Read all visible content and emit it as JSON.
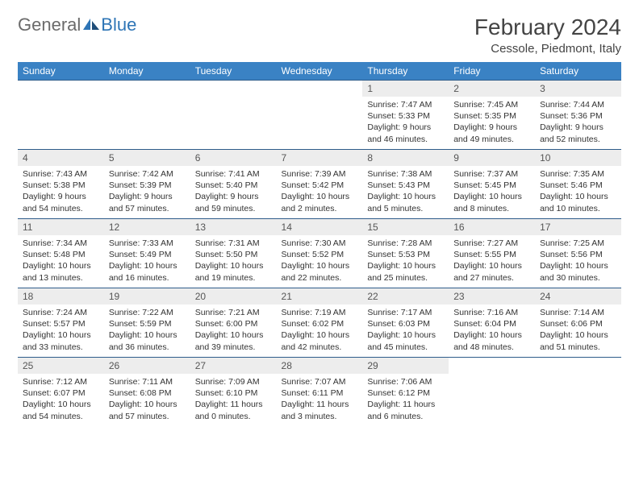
{
  "logo": {
    "text1": "General",
    "text2": "Blue"
  },
  "title": "February 2024",
  "location": "Cessole, Piedmont, Italy",
  "colors": {
    "header_bg": "#3a82c4",
    "header_text": "#ffffff",
    "row_border": "#2e5c8a",
    "daynum_bg": "#ededed",
    "logo_gray": "#6b6b6b",
    "logo_blue": "#2e75b6"
  },
  "day_headers": [
    "Sunday",
    "Monday",
    "Tuesday",
    "Wednesday",
    "Thursday",
    "Friday",
    "Saturday"
  ],
  "weeks": [
    [
      null,
      null,
      null,
      null,
      {
        "n": "1",
        "sr": "7:47 AM",
        "ss": "5:33 PM",
        "dl": "9 hours and 46 minutes."
      },
      {
        "n": "2",
        "sr": "7:45 AM",
        "ss": "5:35 PM",
        "dl": "9 hours and 49 minutes."
      },
      {
        "n": "3",
        "sr": "7:44 AM",
        "ss": "5:36 PM",
        "dl": "9 hours and 52 minutes."
      }
    ],
    [
      {
        "n": "4",
        "sr": "7:43 AM",
        "ss": "5:38 PM",
        "dl": "9 hours and 54 minutes."
      },
      {
        "n": "5",
        "sr": "7:42 AM",
        "ss": "5:39 PM",
        "dl": "9 hours and 57 minutes."
      },
      {
        "n": "6",
        "sr": "7:41 AM",
        "ss": "5:40 PM",
        "dl": "9 hours and 59 minutes."
      },
      {
        "n": "7",
        "sr": "7:39 AM",
        "ss": "5:42 PM",
        "dl": "10 hours and 2 minutes."
      },
      {
        "n": "8",
        "sr": "7:38 AM",
        "ss": "5:43 PM",
        "dl": "10 hours and 5 minutes."
      },
      {
        "n": "9",
        "sr": "7:37 AM",
        "ss": "5:45 PM",
        "dl": "10 hours and 8 minutes."
      },
      {
        "n": "10",
        "sr": "7:35 AM",
        "ss": "5:46 PM",
        "dl": "10 hours and 10 minutes."
      }
    ],
    [
      {
        "n": "11",
        "sr": "7:34 AM",
        "ss": "5:48 PM",
        "dl": "10 hours and 13 minutes."
      },
      {
        "n": "12",
        "sr": "7:33 AM",
        "ss": "5:49 PM",
        "dl": "10 hours and 16 minutes."
      },
      {
        "n": "13",
        "sr": "7:31 AM",
        "ss": "5:50 PM",
        "dl": "10 hours and 19 minutes."
      },
      {
        "n": "14",
        "sr": "7:30 AM",
        "ss": "5:52 PM",
        "dl": "10 hours and 22 minutes."
      },
      {
        "n": "15",
        "sr": "7:28 AM",
        "ss": "5:53 PM",
        "dl": "10 hours and 25 minutes."
      },
      {
        "n": "16",
        "sr": "7:27 AM",
        "ss": "5:55 PM",
        "dl": "10 hours and 27 minutes."
      },
      {
        "n": "17",
        "sr": "7:25 AM",
        "ss": "5:56 PM",
        "dl": "10 hours and 30 minutes."
      }
    ],
    [
      {
        "n": "18",
        "sr": "7:24 AM",
        "ss": "5:57 PM",
        "dl": "10 hours and 33 minutes."
      },
      {
        "n": "19",
        "sr": "7:22 AM",
        "ss": "5:59 PM",
        "dl": "10 hours and 36 minutes."
      },
      {
        "n": "20",
        "sr": "7:21 AM",
        "ss": "6:00 PM",
        "dl": "10 hours and 39 minutes."
      },
      {
        "n": "21",
        "sr": "7:19 AM",
        "ss": "6:02 PM",
        "dl": "10 hours and 42 minutes."
      },
      {
        "n": "22",
        "sr": "7:17 AM",
        "ss": "6:03 PM",
        "dl": "10 hours and 45 minutes."
      },
      {
        "n": "23",
        "sr": "7:16 AM",
        "ss": "6:04 PM",
        "dl": "10 hours and 48 minutes."
      },
      {
        "n": "24",
        "sr": "7:14 AM",
        "ss": "6:06 PM",
        "dl": "10 hours and 51 minutes."
      }
    ],
    [
      {
        "n": "25",
        "sr": "7:12 AM",
        "ss": "6:07 PM",
        "dl": "10 hours and 54 minutes."
      },
      {
        "n": "26",
        "sr": "7:11 AM",
        "ss": "6:08 PM",
        "dl": "10 hours and 57 minutes."
      },
      {
        "n": "27",
        "sr": "7:09 AM",
        "ss": "6:10 PM",
        "dl": "11 hours and 0 minutes."
      },
      {
        "n": "28",
        "sr": "7:07 AM",
        "ss": "6:11 PM",
        "dl": "11 hours and 3 minutes."
      },
      {
        "n": "29",
        "sr": "7:06 AM",
        "ss": "6:12 PM",
        "dl": "11 hours and 6 minutes."
      },
      null,
      null
    ]
  ],
  "labels": {
    "sunrise": "Sunrise: ",
    "sunset": "Sunset: ",
    "daylight": "Daylight: "
  }
}
